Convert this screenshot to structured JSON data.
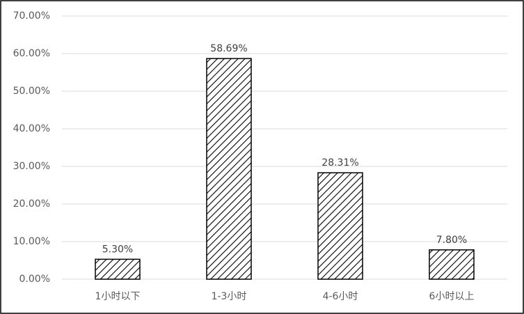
{
  "chart_data": {
    "type": "bar",
    "categories": [
      "1小时以下",
      "1-3小时",
      "4-6小时",
      "6小时以上"
    ],
    "values": [
      5.3,
      58.69,
      28.31,
      7.8
    ],
    "value_labels": [
      "5.30%",
      "58.69%",
      "28.31%",
      "7.80%"
    ],
    "color": "#000000",
    "ylim": [
      0,
      70
    ],
    "yticks": [
      {
        "value": 0,
        "label": "0.00%"
      },
      {
        "value": 10,
        "label": "10.00%"
      },
      {
        "value": 20,
        "label": "20.00%"
      },
      {
        "value": 30,
        "label": "30.00%"
      },
      {
        "value": 40,
        "label": "40.00%"
      },
      {
        "value": 50,
        "label": "50.00%"
      },
      {
        "value": 60,
        "label": "60.00%"
      },
      {
        "value": 70,
        "label": "70.00%"
      }
    ],
    "grid": true
  }
}
